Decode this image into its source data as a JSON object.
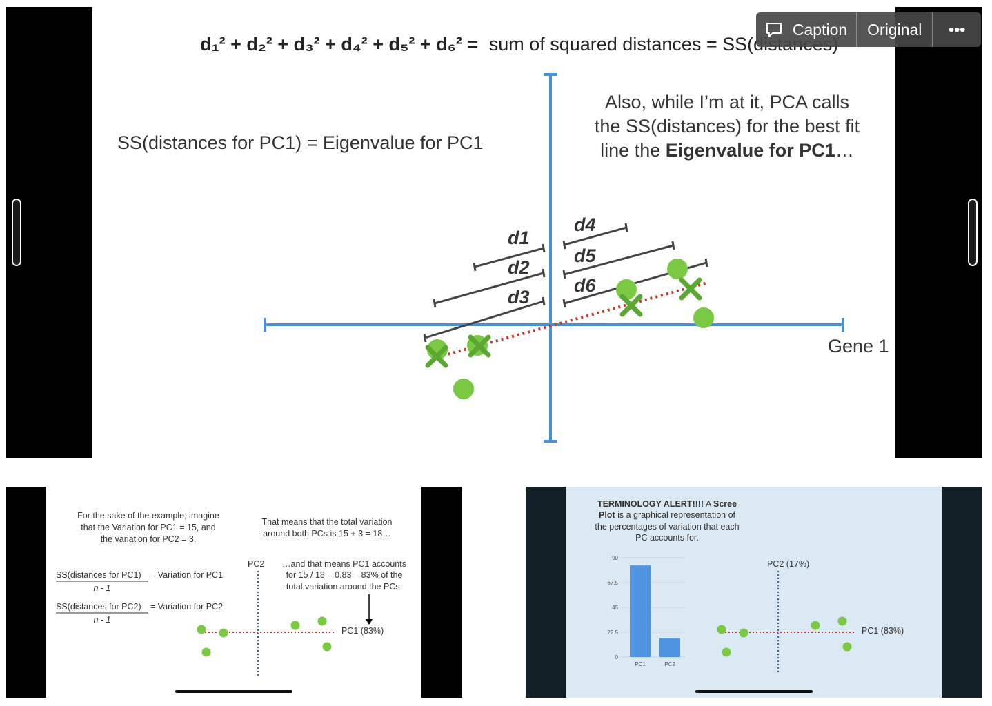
{
  "main_slide": {
    "equation_prefix": "d₁² + d₂² + d₃² + d₄² + d₅² + d₆² =",
    "equation_suffix": "sum of squared distances = SS(distances)",
    "left_caption": "SS(distances for PC1) = Eigenvalue for PC1",
    "right_caption_line1": "Also, while I’m at it, PCA calls",
    "right_caption_line2": "the SS(distances) for the best fit",
    "right_caption_line3_a": "line the ",
    "right_caption_line3_b": "Eigenvalue for PC1",
    "right_caption_line3_c": "…",
    "axis_label": "Gene 1",
    "distance_labels": [
      "d1",
      "d2",
      "d3",
      "d4",
      "d5",
      "d6"
    ],
    "colors": {
      "axis": "#4a90d9",
      "point": "#7ac943",
      "fit_line": "#c0392b",
      "bracket": "#444444"
    }
  },
  "toolbar": {
    "caption_icon": "speech-bubble-icon",
    "caption_label": "Caption",
    "original_label": "Original",
    "more_label": "•••"
  },
  "thumb_left": {
    "text_a_1": "For the sake of the example, imagine",
    "text_a_2": "that the Variation for PC1 = 15, and",
    "text_a_3": "the variation for PC2 = 3.",
    "text_b_1": "That means that the total variation",
    "text_b_2": "around both PCs is 15 + 3 = 18…",
    "text_c_1": "…and that means PC1 accounts",
    "text_c_2": "for 15 / 18 = 0.83 = 83% of the",
    "text_c_3": "total variation around the PCs.",
    "formula1_num": "SS(distances for PC1)",
    "formula1_rhs": "= Variation for PC1",
    "formula1_den": "n - 1",
    "formula2_num": "SS(distances for PC2)",
    "formula2_rhs": "= Variation for PC2",
    "formula2_den": "n - 1",
    "pc2_label": "PC2",
    "pc1_label": "PC1 (83%)"
  },
  "thumb_right": {
    "alert_1": "TERMINOLOGY ALERT!!!! A Scree",
    "alert_2": "Plot is a graphical representation of",
    "alert_3": "the percentages of variation that each",
    "alert_4": "PC accounts for.",
    "pc2_label": "PC2 (17%)",
    "pc1_label": "PC1 (83%)"
  },
  "chart_data": {
    "type": "bar",
    "categories": [
      "PC1",
      "PC2"
    ],
    "values": [
      83,
      17
    ],
    "yticks": [
      "0",
      "22.5",
      "45",
      "67.5",
      "90"
    ],
    "ylim": [
      0,
      90
    ]
  }
}
